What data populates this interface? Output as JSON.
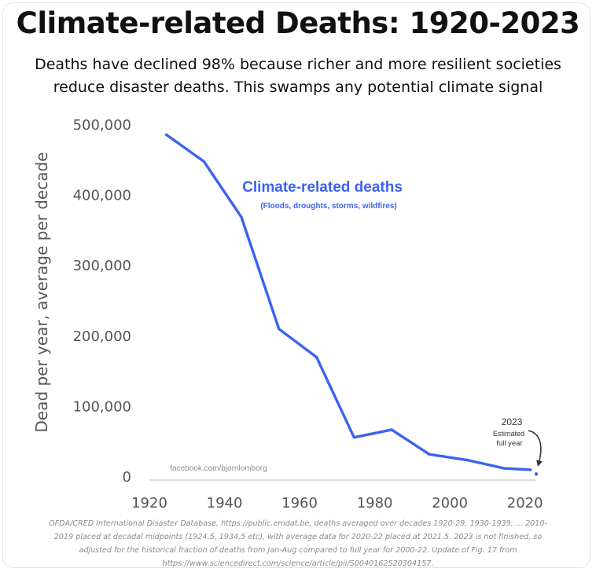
{
  "chart_data": {
    "type": "line",
    "title": "Climate-related Deaths: 1920-2023",
    "subtitle_lines": [
      "Deaths have declined 98% because richer and more resilient societies",
      "reduce disaster deaths. This swamps any potential climate signal"
    ],
    "ylabel": "Dead per year, average per decade",
    "xlabel": "",
    "xlim": [
      1920,
      2023
    ],
    "ylim": [
      0,
      500000
    ],
    "x_ticks": [
      1920,
      1940,
      1960,
      1980,
      2000,
      2020
    ],
    "y_ticks": [
      0,
      100000,
      200000,
      300000,
      400000,
      500000
    ],
    "y_tick_labels": [
      "0",
      "100,000",
      "200,000",
      "300,000",
      "400,000",
      "500,000"
    ],
    "grid": false,
    "series": [
      {
        "name": "Climate-related deaths",
        "name_sub": "(Floods, droughts, storms, wildfires)",
        "color": "#3b63f0",
        "x": [
          1924.5,
          1934.5,
          1944.5,
          1954.5,
          1964.5,
          1974.5,
          1984.5,
          1994.5,
          2004.5,
          2014.5,
          2021.5
        ],
        "y": [
          485000,
          447000,
          368000,
          209000,
          169000,
          55000,
          66000,
          31000,
          23000,
          11000,
          9000
        ]
      }
    ],
    "estimate_point": {
      "x": 2023,
      "y": 3000,
      "color": "#3b63f0"
    },
    "annotation": {
      "year": "2023",
      "line1": "Estimated",
      "line2": "full year"
    },
    "watermark": "facebook.com/bjornlomborg"
  },
  "footnote_lines": [
    "OFDA/CRED International Disaster Database, https://public.emdat.be, deaths averaged over decades 1920-29, 1930-1939, ... 2010-",
    "2019 placed at decadal midpoints (1924.5, 1934.5 etc), with average data for 2020-22 placed at 2021.5. 2023 is not finished, so",
    "adjusted for the historical fraction of deaths from Jan-Aug compared to full year for 2000-22. Update of Fig. 17 from",
    "https://www.sciencedirect.com/science/article/pii/S0040162520304157."
  ]
}
